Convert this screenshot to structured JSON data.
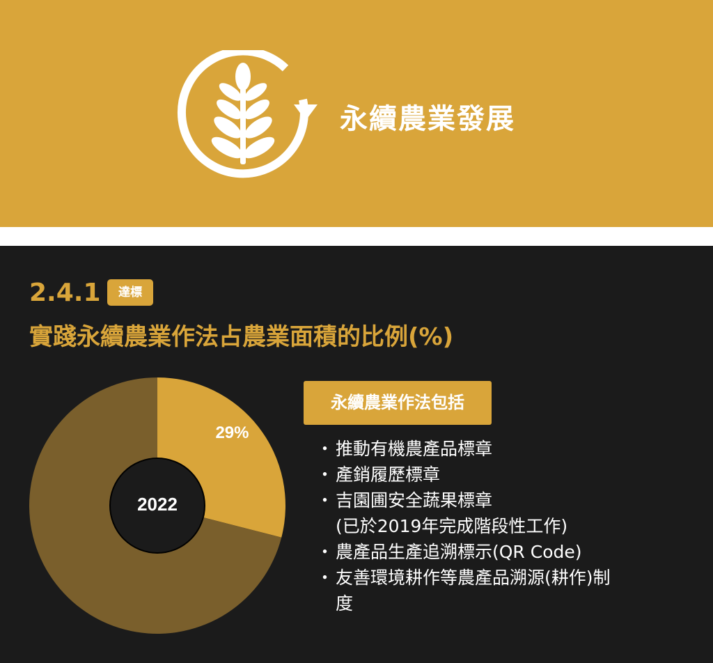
{
  "header": {
    "title": "永續農業發展",
    "icon": "wheat-cycle-icon",
    "background": "#d9a53a"
  },
  "section": {
    "number": "2.4.1",
    "badge": "達標",
    "title": "實踐永續農業作法占農業面積的比例(%)",
    "accent": "#d9a53a"
  },
  "chart_data": {
    "type": "pie",
    "center_label": "2022",
    "slices": [
      {
        "value": 29,
        "label": "29%",
        "color": "#d9a53a"
      },
      {
        "value": 71,
        "label": "",
        "color": "#7a5f2c"
      }
    ]
  },
  "practices": {
    "heading": "永續農業作法包括",
    "bullet": "・",
    "items": [
      {
        "text": "推動有機農產品標章"
      },
      {
        "text": "產銷履歷標章"
      },
      {
        "text": "吉園圃安全蔬果標章",
        "note": "(已於2019年完成階段性工作)"
      },
      {
        "text": "農產品生產追溯標示(QR Code)"
      },
      {
        "text": "友善環境耕作等農產品溯源(耕作)制",
        "cont": "度"
      }
    ]
  }
}
